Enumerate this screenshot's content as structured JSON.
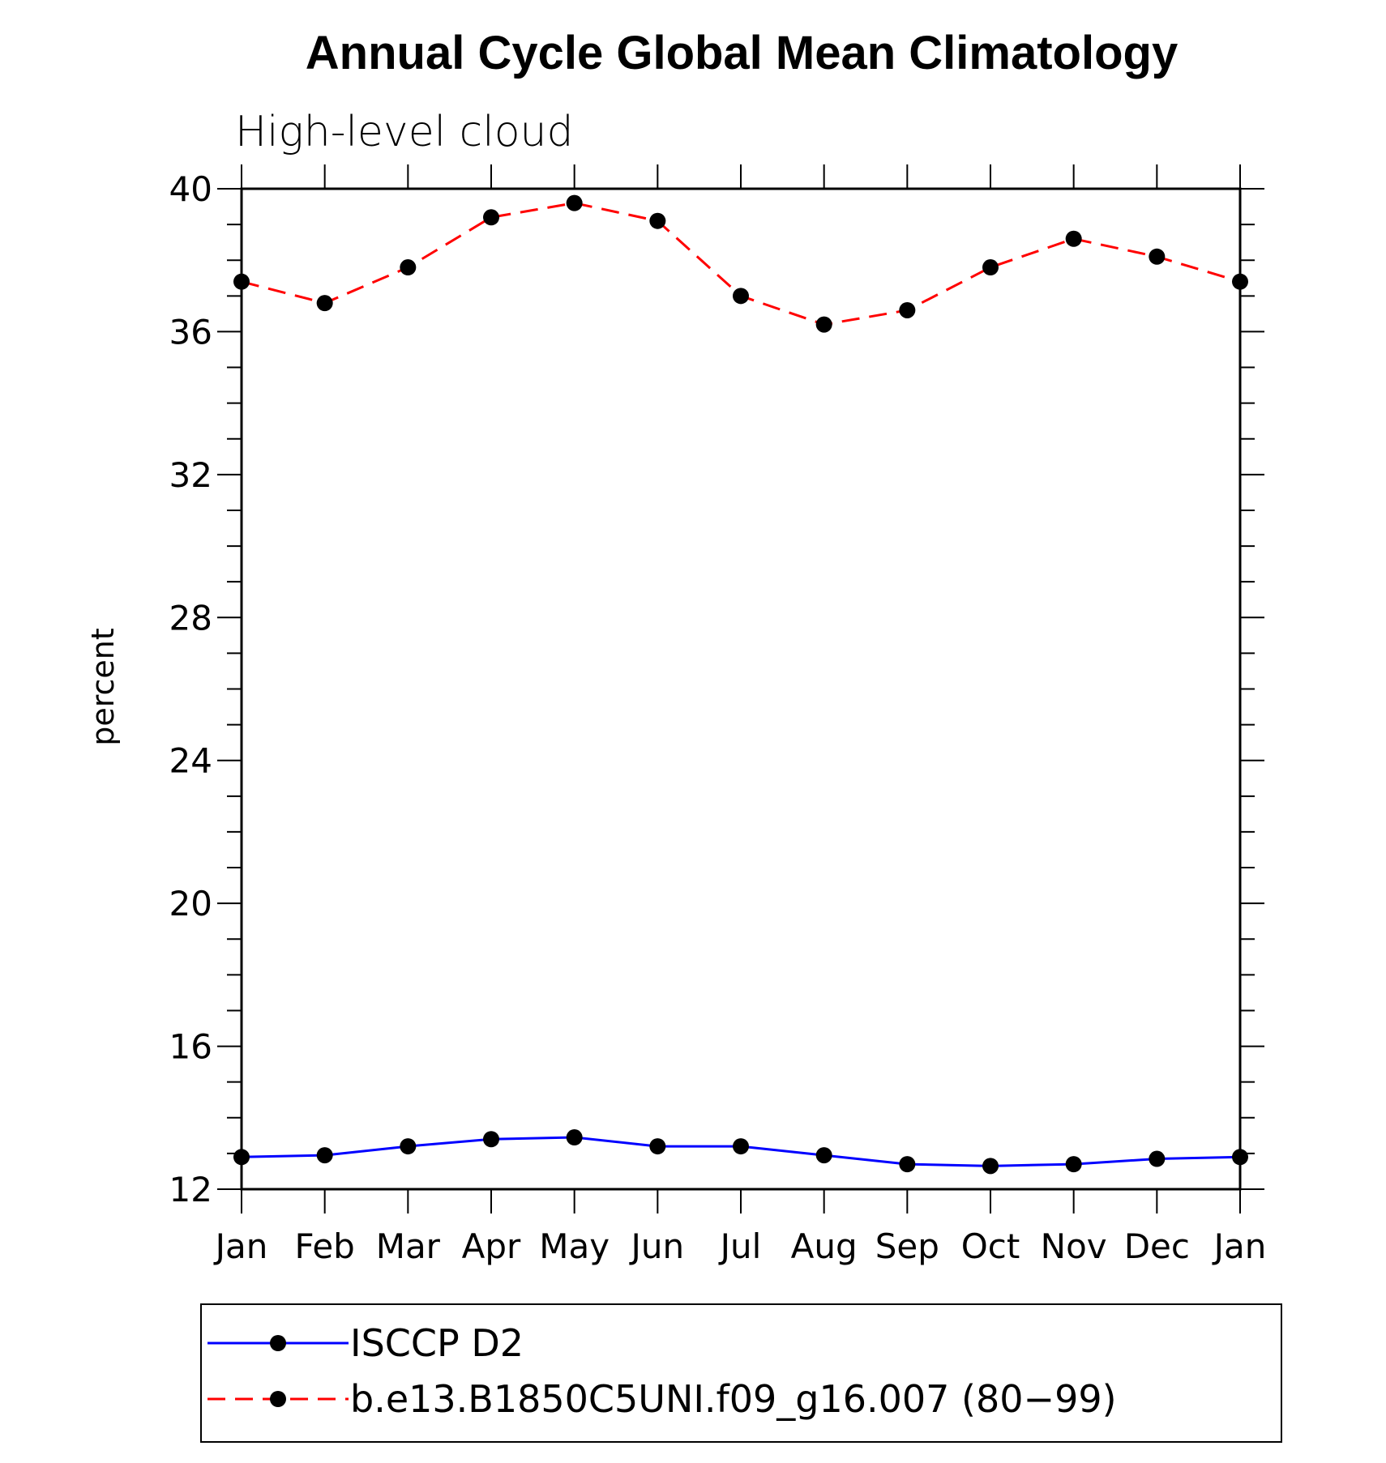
{
  "chart_data": {
    "type": "line",
    "title": "Annual Cycle Global Mean Climatology",
    "subtitle": "High-level cloud",
    "xlabel": "",
    "ylabel": "percent",
    "ylim": [
      12,
      40
    ],
    "yticks": [
      "12",
      "16",
      "20",
      "24",
      "28",
      "32",
      "36",
      "40"
    ],
    "categories": [
      "Jan",
      "Feb",
      "Mar",
      "Apr",
      "May",
      "Jun",
      "Jul",
      "Aug",
      "Sep",
      "Oct",
      "Nov",
      "Dec",
      "Jan"
    ],
    "series": [
      {
        "name": "ISCCP D2",
        "color": "#0000ff",
        "style": "solid",
        "values": [
          12.9,
          12.95,
          13.2,
          13.4,
          13.45,
          13.2,
          13.2,
          12.95,
          12.7,
          12.65,
          12.7,
          12.85,
          12.9
        ]
      },
      {
        "name": "b.e13.B1850C5UNI.f09_g16.007 (80−99)",
        "color": "#ff0000",
        "style": "dashed",
        "values": [
          37.4,
          36.8,
          37.8,
          39.2,
          39.6,
          39.1,
          37.0,
          36.2,
          36.6,
          37.8,
          38.6,
          38.1,
          37.4
        ]
      }
    ],
    "legend_position": "bottom"
  }
}
